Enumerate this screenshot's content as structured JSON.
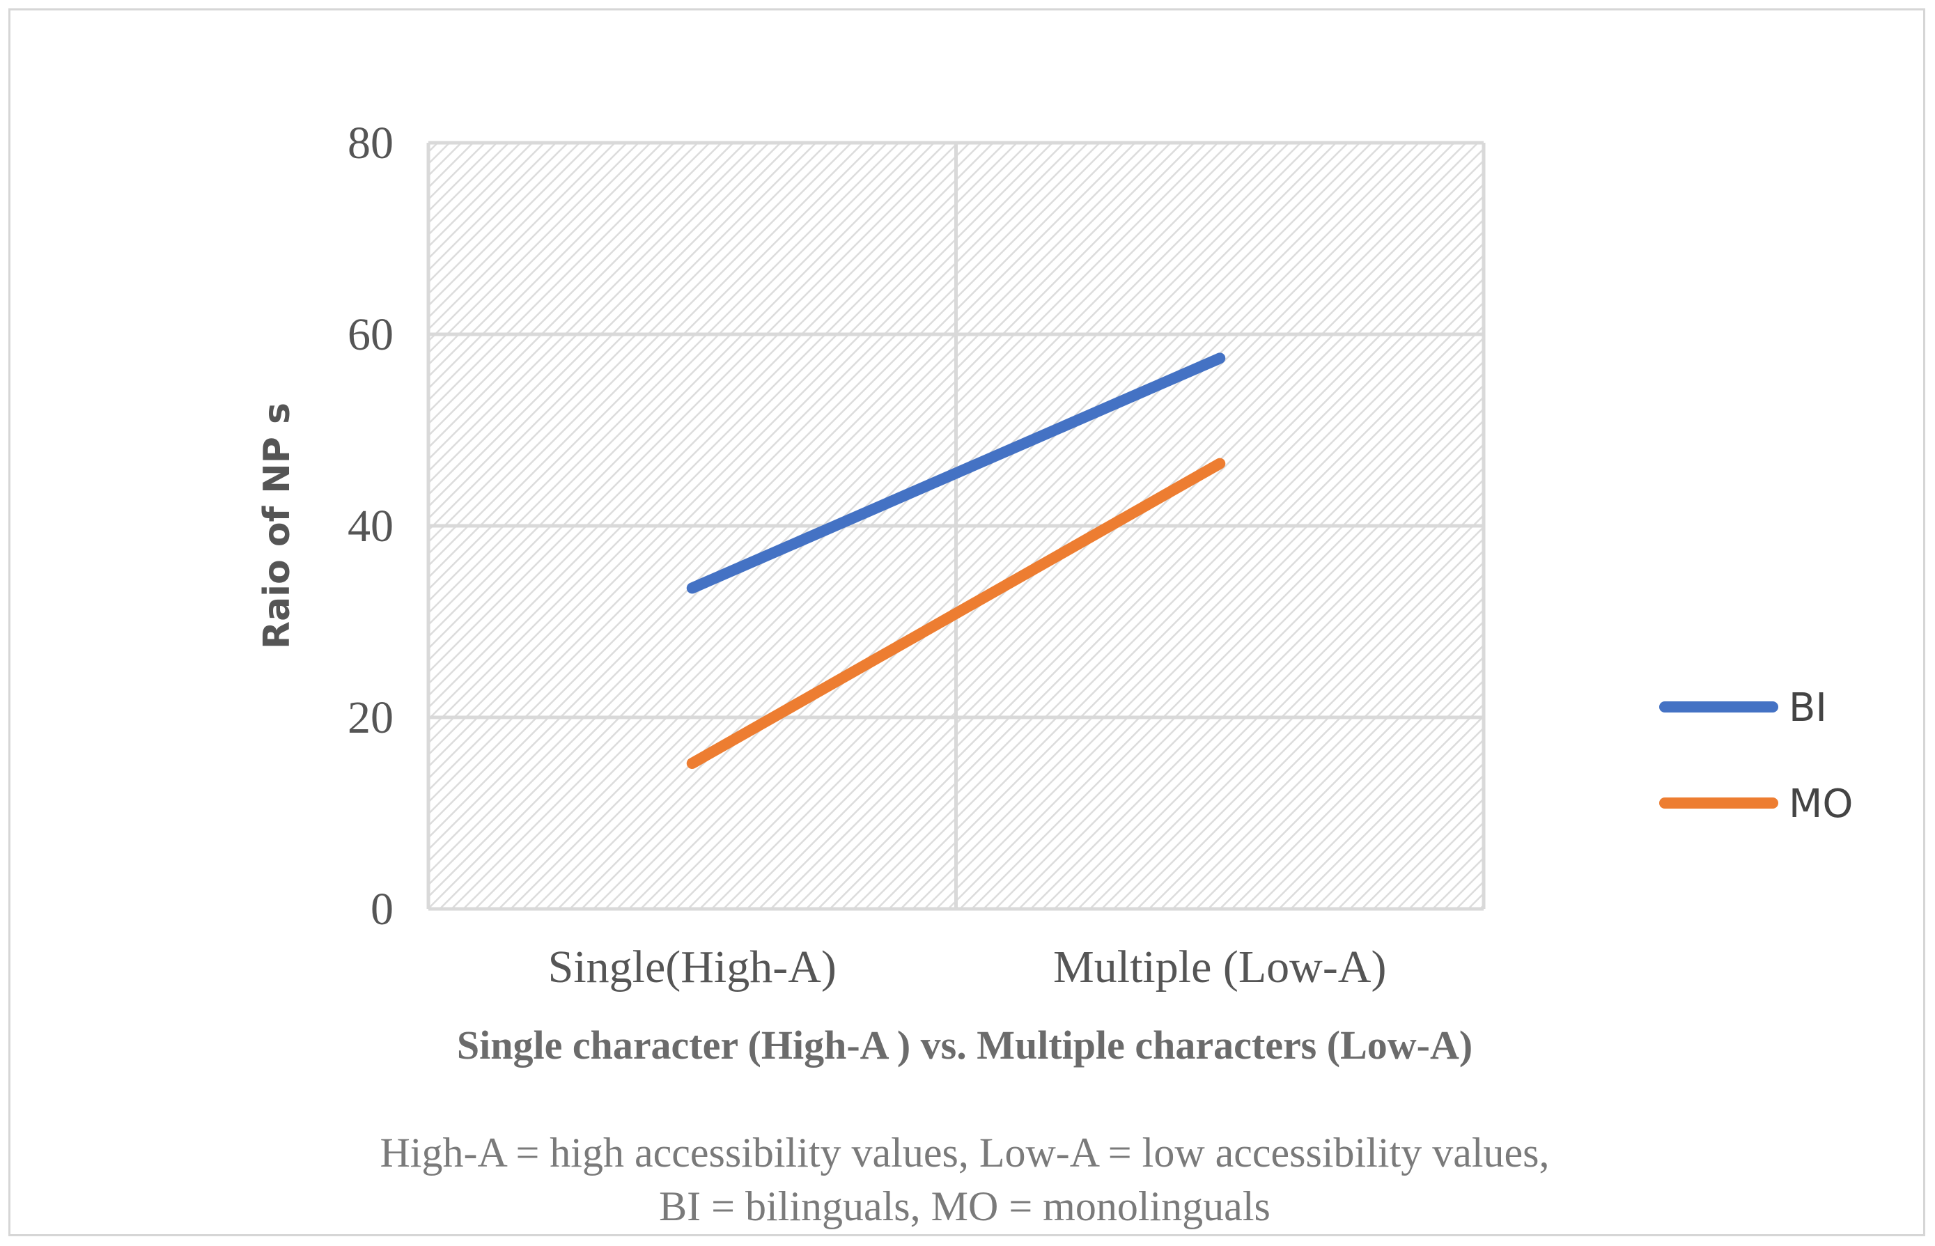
{
  "chart_data": {
    "type": "line",
    "categories": [
      "Single(High-A)",
      "Multiple (Low-A)"
    ],
    "series": [
      {
        "name": "BI",
        "values": [
          33.5,
          57.5
        ],
        "color": "#4472C4"
      },
      {
        "name": "MO",
        "values": [
          15.2,
          46.5
        ],
        "color": "#ED7D31"
      }
    ],
    "title": "",
    "xlabel": "Single character (High-A ) vs. Multiple characters (Low-A)",
    "ylabel": "Raio of NP s",
    "ylim": [
      0,
      80
    ],
    "yticks": [
      0,
      20,
      40,
      60,
      80
    ],
    "grid": true,
    "legend_position": "right"
  },
  "notes": {
    "line1": "High-A = high accessibility values, Low-A = low accessibility values,",
    "line2": "BI = bilinguals, MO = monolinguals"
  }
}
